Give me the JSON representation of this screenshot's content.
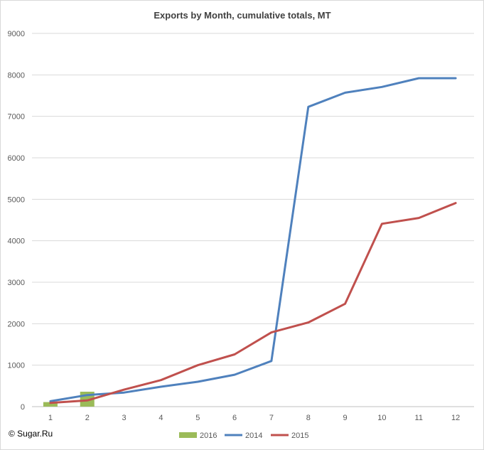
{
  "copyright": "© Sugar.Ru",
  "chart_data": {
    "type": "line",
    "title": "Exports by Month, cumulative totals, MT",
    "xlabel": "",
    "ylabel": "",
    "categories": [
      "1",
      "2",
      "3",
      "4",
      "5",
      "6",
      "7",
      "8",
      "9",
      "10",
      "11",
      "12"
    ],
    "ylim": [
      0,
      9000
    ],
    "yticks": [
      "0",
      "1000",
      "2000",
      "3000",
      "4000",
      "5000",
      "6000",
      "7000",
      "8000",
      "9000"
    ],
    "grid": true,
    "legend_position": "bottom",
    "bar_series": [
      {
        "name": "2016",
        "color": "#9bbb59",
        "values": [
          110,
          360
        ]
      }
    ],
    "series": [
      {
        "name": "2014",
        "color": "#4f81bd",
        "values": [
          130,
          280,
          340,
          480,
          600,
          770,
          1100,
          7230,
          7570,
          7710,
          7920,
          7920
        ]
      },
      {
        "name": "2015",
        "color": "#c0504d",
        "values": [
          90,
          150,
          410,
          640,
          1000,
          1260,
          1790,
          2030,
          2480,
          4410,
          4550,
          4910
        ]
      }
    ],
    "legend": [
      "2016",
      "2014",
      "2015"
    ]
  }
}
